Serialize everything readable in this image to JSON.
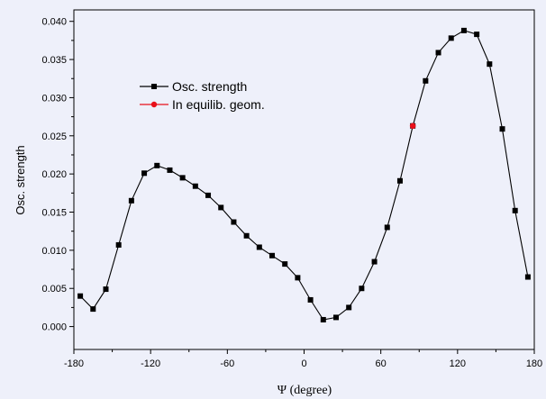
{
  "chart_data": {
    "type": "line",
    "xlabel": "Ψ (degree)",
    "ylabel": "Osc. strength",
    "xlim": [
      -180,
      180
    ],
    "ylim": [
      -0.003,
      0.0415
    ],
    "xticks": [
      -180,
      -120,
      -60,
      0,
      60,
      120,
      180
    ],
    "xtick_labels": [
      "-180",
      "-120",
      "-60",
      "0",
      "60",
      "120",
      "180"
    ],
    "yticks": [
      0.0,
      0.005,
      0.01,
      0.015,
      0.02,
      0.025,
      0.03,
      0.035,
      0.04
    ],
    "ytick_labels": [
      "0.000",
      "0.005",
      "0.010",
      "0.015",
      "0.020",
      "0.025",
      "0.030",
      "0.035",
      "0.040"
    ],
    "grid": false,
    "legend_position": "upper-left",
    "series": [
      {
        "name": "Osc. strength",
        "color": "#000000",
        "marker": "square",
        "line": true,
        "x": [
          -175,
          -165,
          -155,
          -145,
          -135,
          -125,
          -115,
          -105,
          -95,
          -85,
          -75,
          -65,
          -55,
          -45,
          -35,
          -25,
          -15,
          -5,
          5,
          15,
          25,
          35,
          45,
          55,
          65,
          75,
          85,
          95,
          105,
          115,
          125,
          135,
          145,
          155,
          165,
          175
        ],
        "y": [
          0.004,
          0.0023,
          0.0049,
          0.0107,
          0.0165,
          0.0201,
          0.0211,
          0.0205,
          0.0195,
          0.0184,
          0.0172,
          0.0156,
          0.0137,
          0.0119,
          0.0104,
          0.0093,
          0.0082,
          0.0064,
          0.0035,
          0.0009,
          0.0012,
          0.0025,
          0.005,
          0.0085,
          0.013,
          0.0191,
          0.0263,
          0.0322,
          0.0359,
          0.0378,
          0.0388,
          0.0383,
          0.0344,
          0.0259,
          0.0152,
          0.0065
        ]
      },
      {
        "name": "In equilib. geom.",
        "color": "#e8101a",
        "marker": "circle",
        "line": false,
        "x": [
          85
        ],
        "y": [
          0.0263
        ]
      }
    ]
  }
}
